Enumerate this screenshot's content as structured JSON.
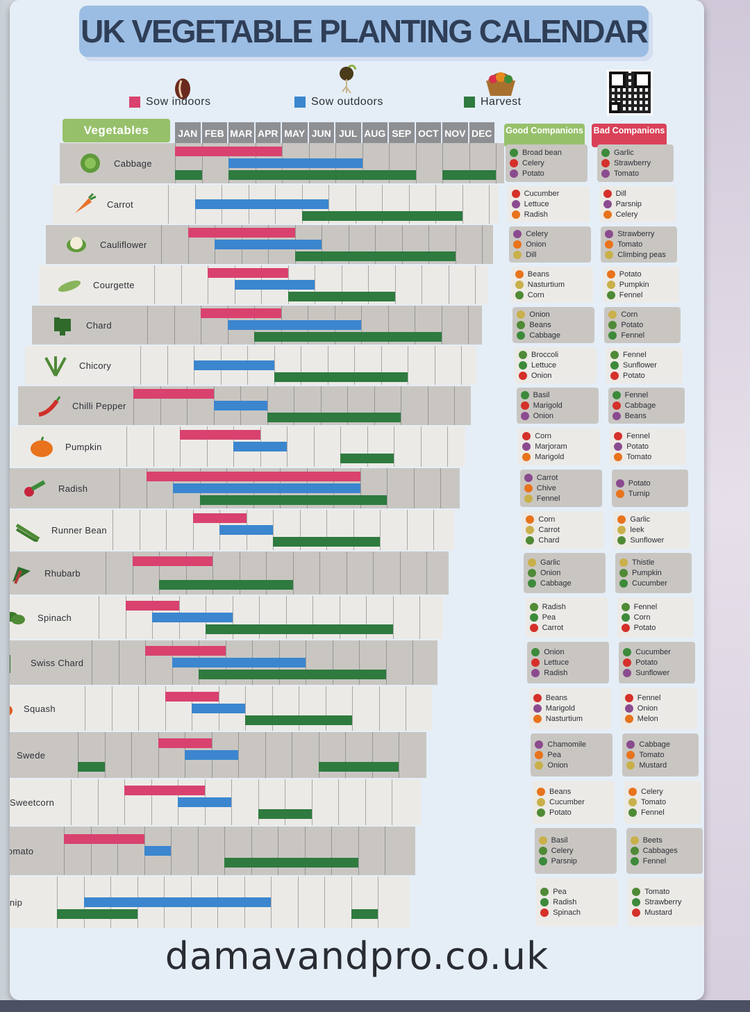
{
  "title": "UK VEGETABLE PLANTING CALENDAR",
  "legend": {
    "sow_indoors": "Sow indoors",
    "sow_outdoors": "Sow outdoors",
    "harvest": "Harvest"
  },
  "colors": {
    "sow_indoors": "#d9426e",
    "sow_outdoors": "#3b86cf",
    "harvest": "#2e7a3f",
    "good_header": "#97c06b",
    "bad_header": "#d94258"
  },
  "headers": {
    "vegetables": "Vegetables",
    "good": "Good Companions",
    "bad": "Bad Companions",
    "months": [
      "JAN",
      "FEB",
      "MAR",
      "APR",
      "MAY",
      "JUN",
      "JUL",
      "AUG",
      "SEP",
      "OCT",
      "NOV",
      "DEC"
    ]
  },
  "vegetables": [
    {
      "name": "Cabbage",
      "icon": "cabbage-icon",
      "indoors": [
        1,
        4
      ],
      "outdoors": [
        3,
        7
      ],
      "harvest": [
        [
          1,
          1
        ],
        [
          3,
          9
        ],
        [
          11,
          12
        ]
      ],
      "good": [
        "Broad bean",
        "Celery",
        "Potato"
      ],
      "bad": [
        "Garlic",
        "Strawberry",
        "Tomato"
      ]
    },
    {
      "name": "Carrot",
      "icon": "carrot-icon",
      "indoors": null,
      "outdoors": [
        2,
        6
      ],
      "harvest": [
        [
          6,
          11
        ]
      ],
      "good": [
        "Cucumber",
        "Lettuce",
        "Radish"
      ],
      "bad": [
        "Dill",
        "Parsnip",
        "Celery"
      ]
    },
    {
      "name": "Cauliflower",
      "icon": "cauliflower-icon",
      "indoors": [
        2,
        5
      ],
      "outdoors": [
        3,
        6
      ],
      "harvest": [
        [
          6,
          11
        ]
      ],
      "good": [
        "Celery",
        "Onion",
        "Dill"
      ],
      "bad": [
        "Strawberry",
        "Tomato",
        "Climbing peas"
      ]
    },
    {
      "name": "Courgette",
      "icon": "courgette-icon",
      "indoors": [
        3,
        5
      ],
      "outdoors": [
        4,
        6
      ],
      "harvest": [
        [
          6,
          9
        ]
      ],
      "good": [
        "Beans",
        "Nasturtium",
        "Corn"
      ],
      "bad": [
        "Potato",
        "Pumpkin",
        "Fennel"
      ]
    },
    {
      "name": "Chard",
      "icon": "chard-icon",
      "indoors": [
        3,
        5
      ],
      "outdoors": [
        4,
        8
      ],
      "harvest": [
        [
          5,
          11
        ]
      ],
      "good": [
        "Onion",
        "Beans",
        "Cabbage"
      ],
      "bad": [
        "Corn",
        "Potato",
        "Fennel"
      ]
    },
    {
      "name": "Chicory",
      "icon": "chicory-icon",
      "indoors": null,
      "outdoors": [
        3,
        5
      ],
      "harvest": [
        [
          6,
          10
        ]
      ],
      "good": [
        "Broccoli",
        "Lettuce",
        "Onion"
      ],
      "bad": [
        "Fennel",
        "Sunflower",
        "Potato"
      ]
    },
    {
      "name": "Chilli Pepper",
      "icon": "chilli-pepper-icon",
      "indoors": [
        1,
        3
      ],
      "outdoors": [
        4,
        5
      ],
      "harvest": [
        [
          6,
          10
        ]
      ],
      "good": [
        "Basil",
        "Marigold",
        "Onion"
      ],
      "bad": [
        "Fennel",
        "Cabbage",
        "Beans"
      ]
    },
    {
      "name": "Pumpkin",
      "icon": "pumpkin-icon",
      "indoors": [
        3,
        5
      ],
      "outdoors": [
        5,
        6
      ],
      "harvest": [
        [
          9,
          10
        ]
      ],
      "good": [
        "Corn",
        "Marjoram",
        "Marigold"
      ],
      "bad": [
        "Fennel",
        "Potato",
        "Tomato"
      ]
    },
    {
      "name": "Radish",
      "icon": "radish-icon",
      "indoors": [
        2,
        9
      ],
      "outdoors": [
        3,
        9
      ],
      "harvest": [
        [
          4,
          10
        ]
      ],
      "good": [
        "Carrot",
        "Chive",
        "Fennel"
      ],
      "bad": [
        "Potato",
        "Turnip"
      ]
    },
    {
      "name": "Runner Bean",
      "icon": "runner-bean-icon",
      "indoors": [
        4,
        5
      ],
      "outdoors": [
        5,
        6
      ],
      "harvest": [
        [
          7,
          10
        ]
      ],
      "good": [
        "Corn",
        "Carrot",
        "Chard"
      ],
      "bad": [
        "Garlic",
        "leek",
        "Sunflower"
      ]
    },
    {
      "name": "Rhubarb",
      "icon": "rhubarb-icon",
      "indoors": [
        2,
        4
      ],
      "outdoors": null,
      "harvest": [
        [
          3,
          7
        ]
      ],
      "good": [
        "Garlic",
        "Onion",
        "Cabbage"
      ],
      "bad": [
        "Thistle",
        "Pumpkin",
        "Cucumber"
      ]
    },
    {
      "name": "Spinach",
      "icon": "spinach-icon",
      "indoors": [
        2,
        3
      ],
      "outdoors": [
        3,
        5
      ],
      "harvest": [
        [
          5,
          11
        ]
      ],
      "good": [
        "Radish",
        "Pea",
        "Carrot"
      ],
      "bad": [
        "Fennel",
        "Corn",
        "Potato"
      ]
    },
    {
      "name": "Swiss Chard",
      "icon": "swiss-chard-icon",
      "indoors": [
        3,
        5
      ],
      "outdoors": [
        4,
        8
      ],
      "harvest": [
        [
          5,
          11
        ]
      ],
      "good": [
        "Onion",
        "Lettuce",
        "Radish"
      ],
      "bad": [
        "Cucumber",
        "Potato",
        "Sunflower"
      ]
    },
    {
      "name": "Squash",
      "icon": "squash-icon",
      "indoors": [
        4,
        5
      ],
      "outdoors": [
        5,
        6
      ],
      "harvest": [
        [
          7,
          10
        ]
      ],
      "good": [
        "Beans",
        "Marigold",
        "Nasturtium"
      ],
      "bad": [
        "Fennel",
        "Onion",
        "Melon"
      ]
    },
    {
      "name": "Swede",
      "icon": "swede-icon",
      "indoors": [
        4,
        5
      ],
      "outdoors": [
        5,
        6
      ],
      "harvest": [
        [
          1,
          1
        ],
        [
          10,
          12
        ]
      ],
      "good": [
        "Chamomile",
        "Pea",
        "Onion"
      ],
      "bad": [
        "Cabbage",
        "Tomato",
        "Mustard"
      ]
    },
    {
      "name": "Sweetcorn",
      "icon": "sweetcorn-icon",
      "indoors": [
        3,
        5
      ],
      "outdoors": [
        5,
        6
      ],
      "harvest": [
        [
          8,
          9
        ]
      ],
      "good": [
        "Beans",
        "Cucumber",
        "Potato"
      ],
      "bad": [
        "Celery",
        "Tomato",
        "Fennel"
      ]
    },
    {
      "name": "Tomato",
      "icon": "tomato-icon",
      "indoors": [
        1,
        3
      ],
      "outdoors": [
        4,
        4
      ],
      "harvest": [
        [
          7,
          11
        ]
      ],
      "good": [
        "Basil",
        "Celery",
        "Parsnip"
      ],
      "bad": [
        "Beets",
        "Cabbages",
        "Fennel"
      ]
    },
    {
      "name": "Turnip",
      "icon": "turnip-icon",
      "indoors": null,
      "outdoors": [
        2,
        8
      ],
      "harvest": [
        [
          1,
          3
        ],
        [
          12,
          12
        ]
      ],
      "good": [
        "Pea",
        "Radish",
        "Spinach"
      ],
      "bad": [
        "Tomato",
        "Strawberry",
        "Mustard"
      ]
    }
  ],
  "footer": "damavandpro.co.uk"
}
